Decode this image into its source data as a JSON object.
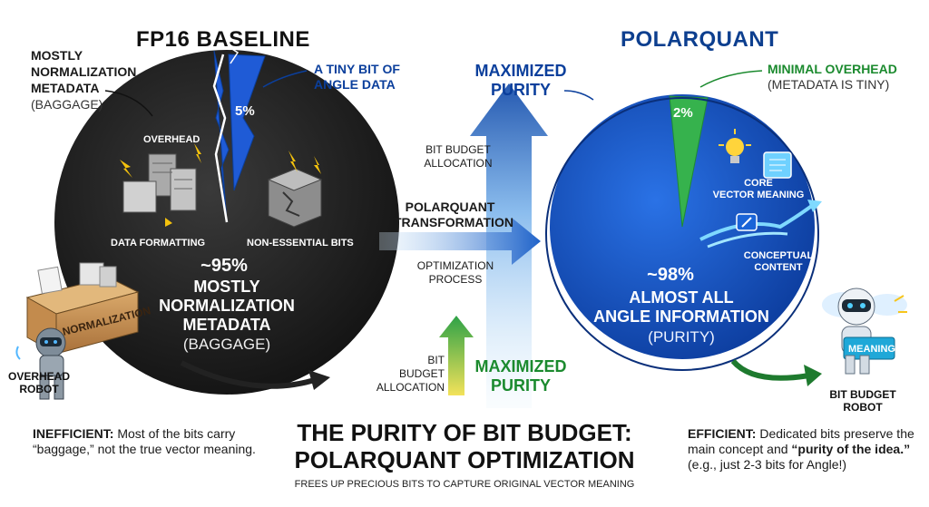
{
  "left_panel": {
    "title": "FP16 BASELINE",
    "metadata_label": {
      "line1": "MOSTLY",
      "line2": "NORMALIZATION",
      "line3": "METADATA",
      "line4": "(BAGGAGE)"
    },
    "angle_label": {
      "line1": "A TINY BIT OF",
      "line2": "ANGLE DATA"
    },
    "slice_pct": "5%",
    "overhead": "OVERHEAD",
    "data_formatting": "DATA FORMATTING",
    "non_essential": "NON-ESSENTIAL BITS",
    "main_pct": "~95%",
    "main_desc": {
      "line1": "MOSTLY",
      "line2": "NORMALIZATION",
      "line3": "METADATA"
    },
    "main_sub": "(BAGGAGE)",
    "robot_label": {
      "line1": "OVERHEAD",
      "line2": "ROBOT"
    },
    "box_label": "NORMALIZATION",
    "note_bold": "INEFFICIENT:",
    "note_text": " Most of the bits carry “baggage,” not the true vector meaning."
  },
  "middle": {
    "maximized_top": {
      "line1": "MAXIMIZED",
      "line2": "PURITY"
    },
    "bit_budget_top": {
      "line1": "BIT BUDGET",
      "line2": "ALLOCATION"
    },
    "transformation": {
      "line1": "POLARQUANT",
      "line2": "TRANSFORMATION"
    },
    "optimization": {
      "line1": "OPTIMIZATION",
      "line2": "PROCESS"
    },
    "bit_budget_bottom": {
      "line1": "BIT",
      "line2": "BUDGET",
      "line3": "ALLOCATION"
    },
    "maximized_bottom": {
      "line1": "MAXIMIZED",
      "line2": "PURITY"
    }
  },
  "right_panel": {
    "title": "POLARQUANT",
    "minimal_label": {
      "line1": "MINIMAL OVERHEAD",
      "line2": "(METADATA IS TINY)"
    },
    "slice_pct": "2%",
    "core_meaning": {
      "line1": "CORE",
      "line2": "VECTOR MEANING"
    },
    "conceptual": {
      "line1": "CONCEPTUAL",
      "line2": "CONTENT"
    },
    "main_pct": "~98%",
    "main_desc": {
      "line1": "ALMOST ALL",
      "line2": "ANGLE INFORMATION"
    },
    "main_sub": "(PURITY)",
    "robot_label": {
      "line1": "BIT BUDGET",
      "line2": "ROBOT"
    },
    "box_label": "MEANING",
    "note_bold": "EFFICIENT:",
    "note_text_1": " Dedicated bits preserve the main concept and ",
    "note_bold_2": "“purity of the idea.”",
    "note_text_2": "(e.g., just 2-3 bits for Angle!)"
  },
  "footer": {
    "title_line1": "THE PURITY OF BIT BUDGET:",
    "title_line2": "POLARQUANT OPTIMIZATION",
    "subtitle": "FREES UP PRECIOUS BITS TO CAPTURE ORIGINAL VECTOR MEANING"
  },
  "colors": {
    "left_pie": "#1e1e1e",
    "right_pie": "#1553c4",
    "accent_blue": "#0b3f9c",
    "accent_green": "#1b8a2e",
    "slice_green": "#2fb04a"
  },
  "chart_data": {
    "type": "pie",
    "charts": [
      {
        "title": "FP16 BASELINE",
        "values": [
          95,
          5
        ],
        "categories": [
          "MOSTLY NORMALIZATION METADATA (BAGGAGE)",
          "A TINY BIT OF ANGLE DATA"
        ]
      },
      {
        "title": "POLARQUANT",
        "values": [
          98,
          2
        ],
        "categories": [
          "ALMOST ALL ANGLE INFORMATION (PURITY)",
          "MINIMAL OVERHEAD (METADATA IS TINY)"
        ]
      }
    ]
  }
}
